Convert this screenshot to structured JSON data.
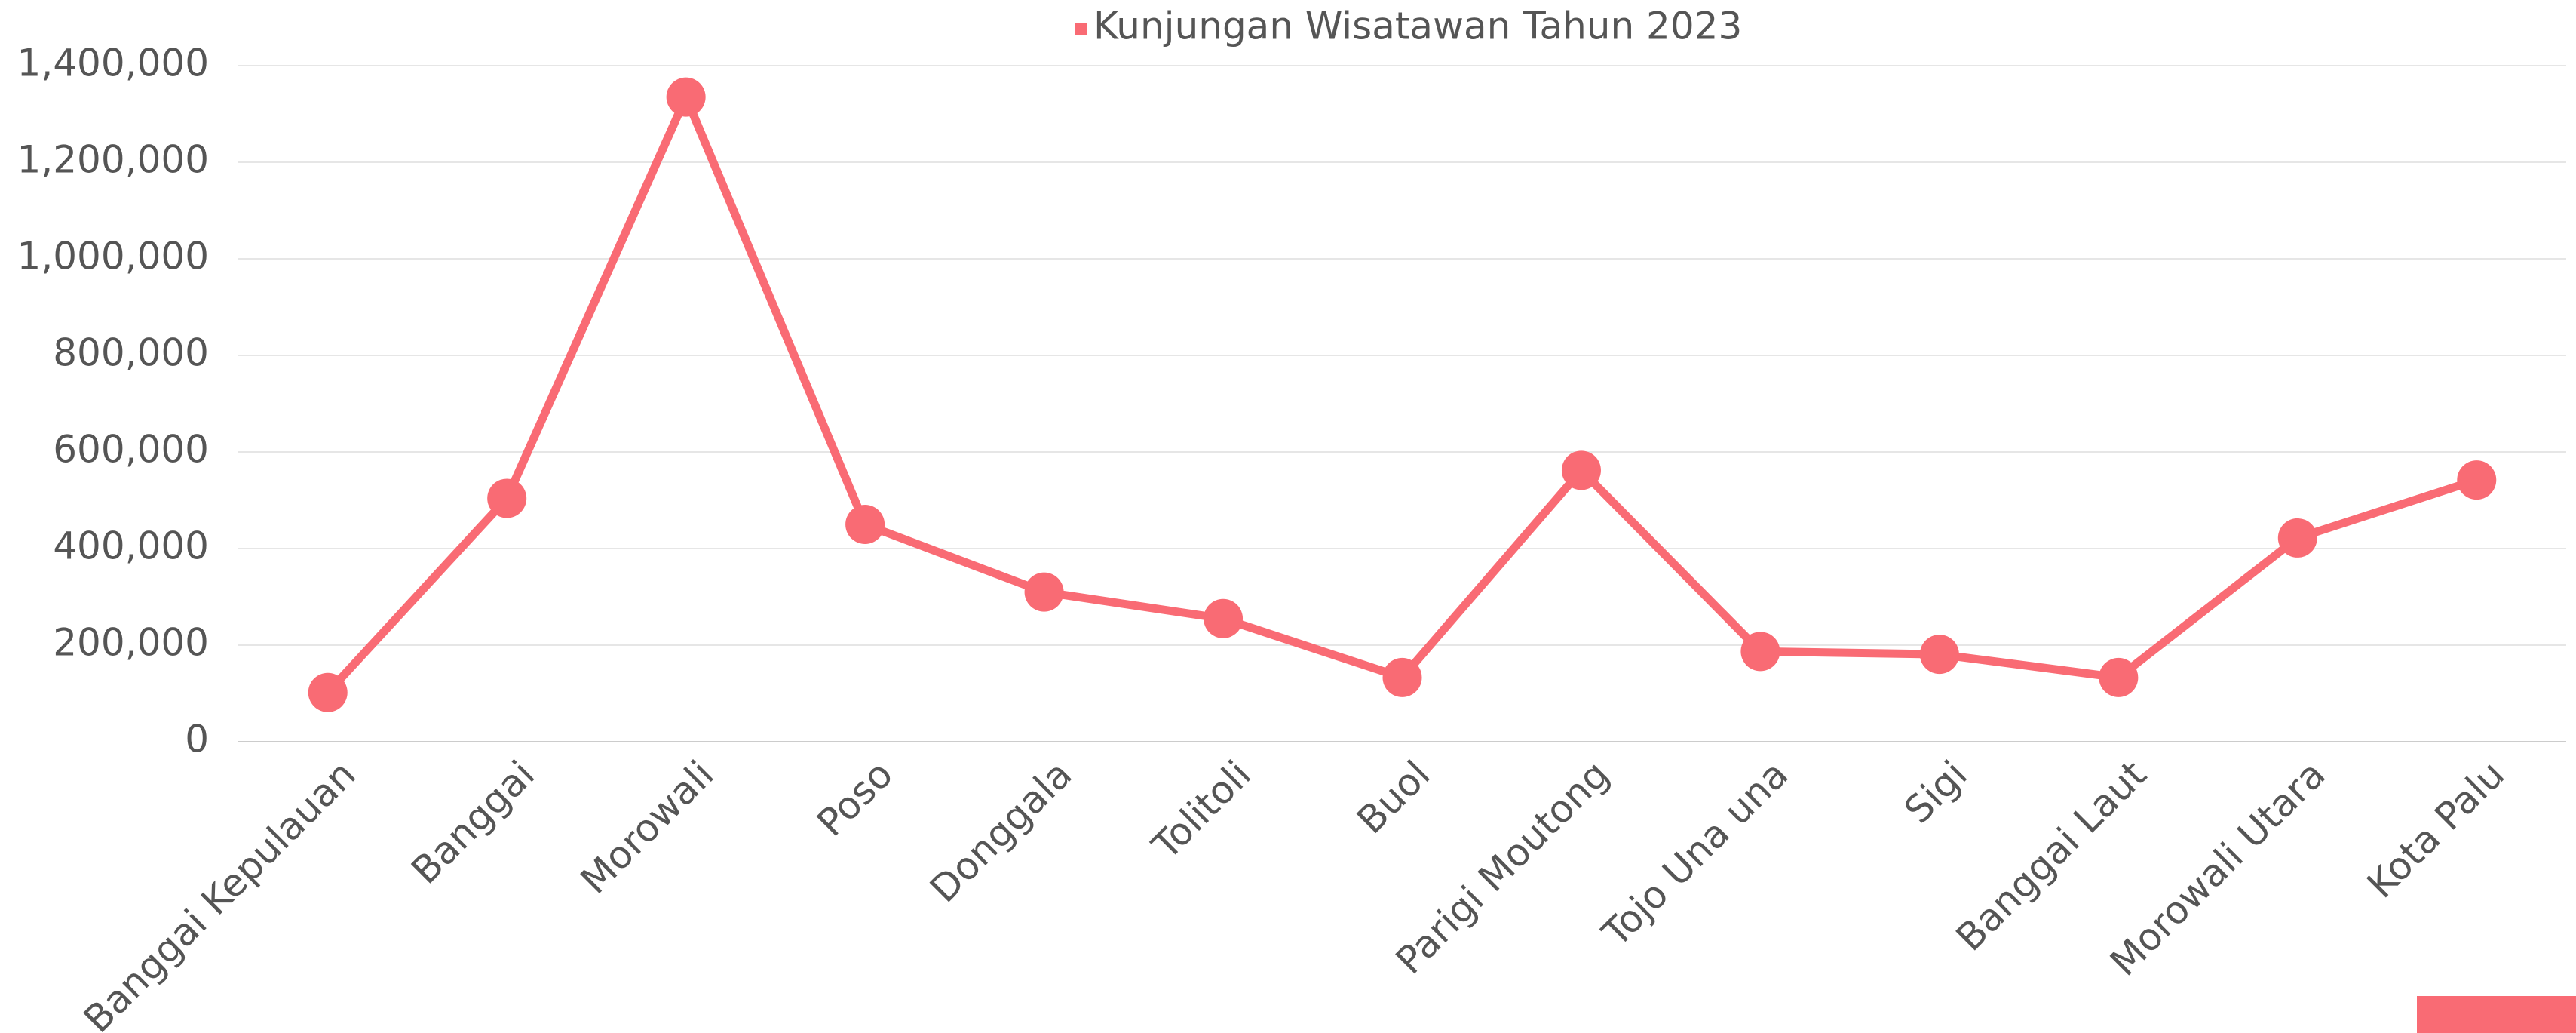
{
  "chart_data": {
    "type": "line",
    "categories": [
      "Banggai Kepulauan",
      "Banggai",
      "Morowali",
      "Poso",
      "Donggala",
      "Tolitoli",
      "Buol",
      "Parigi Moutong",
      "Tojo Una una",
      "Sigi",
      "Banggai Laut",
      "Morowali Utara",
      "Kota Palu"
    ],
    "series": [
      {
        "name": "Kunjungan Wisatawan Tahun 2023",
        "color": "#f96b74",
        "values": [
          102000,
          504000,
          1335000,
          450000,
          310000,
          255000,
          133000,
          562000,
          187000,
          181000,
          133000,
          422000,
          542000
        ]
      }
    ],
    "ylim": [
      0,
      1400000
    ],
    "yticks": [
      0,
      {
        "value": 200000,
        "label": "200,000"
      },
      {
        "value": 400000,
        "label": "400,000"
      },
      {
        "value": 600000,
        "label": "600,000"
      },
      {
        "value": 800000,
        "label": "800,000"
      },
      {
        "value": 1000000,
        "label": "1,000,000"
      },
      {
        "value": 1200000,
        "label": "1,200,000"
      },
      {
        "value": 1400000,
        "label": "1,400,000"
      }
    ],
    "grid": true,
    "legend": "top"
  }
}
